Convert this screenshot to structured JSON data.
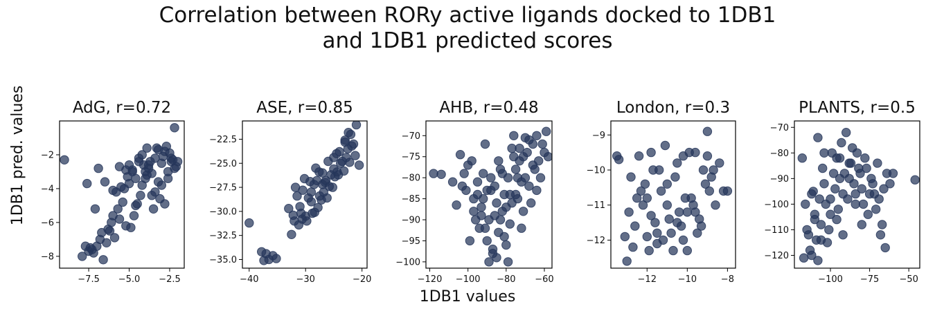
{
  "suptitle_lines": [
    "Correlation between RORy active ligands docked to 1DB1",
    "and 1DB1 predicted scores"
  ],
  "supxlabel": "1DB1 values",
  "supylabel": "1DB1 pred. values",
  "chart_data": [
    {
      "type": "scatter",
      "title": "AdG, r=0.72",
      "r": 0.72,
      "xlim": [
        -9.3,
        -1.6
      ],
      "ylim": [
        -8.7,
        0.0
      ],
      "xticks": [
        -7.5,
        -5.0,
        -2.5
      ],
      "xtick_labels": [
        "−7.5",
        "−5.0",
        "−2.5"
      ],
      "yticks": [
        -8,
        -6,
        -4,
        -2
      ],
      "ytick_labels": [
        "−8",
        "−6",
        "−4",
        "−2"
      ],
      "x": [
        -9.0,
        -7.6,
        -7.4,
        -7.9,
        -7.2,
        -7.0,
        -6.8,
        -6.6,
        -6.4,
        -6.2,
        -6.0,
        -5.8,
        -5.6,
        -5.4,
        -5.2,
        -5.0,
        -4.8,
        -4.6,
        -4.4,
        -4.2,
        -4.0,
        -3.8,
        -3.6,
        -3.4,
        -3.2,
        -3.0,
        -2.8,
        -2.6,
        -2.4,
        -2.2,
        -2.0,
        -3.3,
        -3.1,
        -3.7,
        -3.5,
        -2.9,
        -2.7,
        -4.1,
        -4.3,
        -3.9,
        -4.5,
        -4.7,
        -4.9,
        -5.1,
        -5.3,
        -5.5,
        -5.7,
        -6.1,
        -6.5,
        -6.9,
        -7.1,
        -7.5,
        -7.7,
        -6.7,
        -5.9,
        -4.0,
        -3.0,
        -2.5,
        -2.1,
        -2.3,
        -3.6,
        -4.4,
        -5.2,
        -6.3,
        -7.3,
        -6.0,
        -4.6,
        -3.4,
        -2.8,
        -3.8,
        -4.2,
        -5.0,
        -5.6,
        -4.8,
        -2.6,
        -3.2,
        -3.9,
        -2.4,
        -2.2
      ],
      "y": [
        -2.3,
        -3.7,
        -7.5,
        -8.0,
        -7.8,
        -7.4,
        -7.0,
        -8.2,
        -7.2,
        -6.5,
        -5.6,
        -4.2,
        -5.8,
        -4.8,
        -6.2,
        -2.6,
        -3.0,
        -3.4,
        -2.4,
        -3.8,
        -3.0,
        -2.8,
        -4.4,
        -2.2,
        -3.6,
        -2.5,
        -1.8,
        -3.0,
        -2.2,
        -2.8,
        -2.4,
        -1.6,
        -4.6,
        -2.4,
        -5.2,
        -2.1,
        -1.5,
        -2.6,
        -4.4,
        -3.2,
        -4.9,
        -5.6,
        -6.3,
        -3.3,
        -4.0,
        -3.9,
        -5.2,
        -6.0,
        -3.6,
        -2.8,
        -5.2,
        -7.7,
        -7.4,
        -6.6,
        -6.9,
        -3.4,
        -3.8,
        -1.9,
        -2.7,
        -2.3,
        -3.1,
        -2.2,
        -2.9,
        -6.4,
        -7.6,
        -4.1,
        -5.0,
        -4.2,
        -4.9,
        -2.6,
        -2.0,
        -3.7,
        -2.7,
        -2.9,
        -3.4,
        -1.7,
        -1.6,
        -2.4,
        -0.4
      ]
    },
    {
      "type": "scatter",
      "title": "ASE, r=0.85",
      "r": 0.85,
      "xlim": [
        -41.2,
        -19.1
      ],
      "ylim": [
        -35.9,
        -20.6
      ],
      "xticks": [
        -40,
        -30,
        -20
      ],
      "xtick_labels": [
        "−40",
        "−30",
        "−20"
      ],
      "yticks": [
        -35.0,
        -32.5,
        -30.0,
        -27.5,
        -25.0,
        -22.5
      ],
      "ytick_labels": [
        "−35.0",
        "−32.5",
        "−30.0",
        "−27.5",
        "−25.0",
        "−22.5"
      ],
      "x": [
        -40.0,
        -37.8,
        -37.4,
        -37.0,
        -36.5,
        -35.8,
        -35.2,
        -33.0,
        -32.0,
        -31.5,
        -31.0,
        -30.5,
        -30.0,
        -29.5,
        -29.0,
        -28.5,
        -28.0,
        -27.5,
        -27.0,
        -26.5,
        -26.0,
        -25.5,
        -25.0,
        -24.5,
        -24.0,
        -23.5,
        -23.0,
        -22.5,
        -22.0,
        -21.5,
        -21.0,
        -20.5,
        -32.5,
        -31.2,
        -30.8,
        -29.8,
        -28.8,
        -27.8,
        -26.8,
        -25.8,
        -24.8,
        -23.8,
        -22.8,
        -21.8,
        -30.2,
        -29.2,
        -28.2,
        -27.2,
        -26.2,
        -25.2,
        -24.2,
        -23.2,
        -22.2,
        -21.2,
        -29.0,
        -27.0,
        -25.0,
        -23.0,
        -31.8,
        -28.4,
        -26.4,
        -24.4,
        -22.4,
        -30.6,
        -32.2,
        -27.6
      ],
      "y": [
        -31.2,
        -34.2,
        -35.1,
        -34.4,
        -35.0,
        -34.6,
        -34.9,
        -29.7,
        -31.0,
        -28.4,
        -29.5,
        -27.8,
        -30.5,
        -28.6,
        -29.0,
        -27.2,
        -26.8,
        -28.4,
        -26.0,
        -27.0,
        -24.8,
        -26.2,
        -25.6,
        -24.0,
        -23.8,
        -24.8,
        -22.8,
        -23.5,
        -22.0,
        -23.0,
        -21.0,
        -25.2,
        -32.4,
        -31.4,
        -30.2,
        -31.0,
        -30.2,
        -29.6,
        -28.0,
        -27.4,
        -26.4,
        -25.0,
        -24.4,
        -23.2,
        -26.6,
        -26.9,
        -25.5,
        -28.8,
        -28.6,
        -27.5,
        -26.2,
        -25.8,
        -24.9,
        -24.2,
        -28.0,
        -27.2,
        -24.4,
        -22.6,
        -27.5,
        -30.1,
        -26.8,
        -25.9,
        -21.8,
        -30.8,
        -30.4,
        -25.9
      ]
    },
    {
      "type": "scatter",
      "title": "AHB, r=0.48",
      "r": 0.48,
      "xlim": [
        -122,
        -56
      ],
      "ylim": [
        -101.5,
        -66.5
      ],
      "xticks": [
        -120,
        -100,
        -80,
        -60
      ],
      "xtick_labels": [
        "−120",
        "−100",
        "−80",
        "−60"
      ],
      "yticks": [
        -100,
        -95,
        -90,
        -85,
        -80,
        -75,
        -70
      ],
      "ytick_labels": [
        "−100",
        "−95",
        "−90",
        "−85",
        "−80",
        "−75",
        "−70"
      ],
      "x": [
        -118,
        -114,
        -108,
        -106,
        -104,
        -103,
        -101,
        -100,
        -99,
        -98,
        -97,
        -96,
        -95,
        -94,
        -93,
        -92,
        -91,
        -90,
        -89,
        -88,
        -87,
        -86,
        -85,
        -84,
        -83,
        -82,
        -81,
        -80,
        -79,
        -78,
        -77,
        -76,
        -75,
        -74,
        -73,
        -72,
        -71,
        -70,
        -69,
        -68,
        -67,
        -66,
        -65,
        -64,
        -63,
        -62,
        -61,
        -60,
        -59,
        -58,
        -88,
        -85,
        -82,
        -80,
        -78,
        -76,
        -86,
        -84,
        -90,
        -92,
        -74,
        -72,
        -70,
        -79,
        -81,
        -83,
        -87,
        -77,
        -75,
        -89,
        -93,
        -68,
        -66,
        -64,
        -95,
        -102,
        -97,
        -91,
        -73,
        -71
      ],
      "y": [
        -79,
        -79.2,
        -81,
        -86.5,
        -74.5,
        -82,
        -83,
        -77,
        -95,
        -76,
        -88,
        -90,
        -84,
        -92,
        -87,
        -85,
        -72,
        -95,
        -90,
        -80,
        -98,
        -82,
        -86,
        -93,
        -78,
        -88,
        -84,
        -96,
        -80,
        -84,
        -86,
        -75,
        -78,
        -80,
        -76,
        -92,
        -88,
        -80,
        -74,
        -82,
        -86,
        -72,
        -78,
        -70,
        -76,
        -80,
        -72,
        -74,
        -69,
        -75,
        -83,
        -99,
        -79,
        -87,
        -91,
        -70,
        -89,
        -76,
        -83,
        -79,
        -85,
        -81,
        -70.5,
        -100,
        -94,
        -90,
        -97,
        -73,
        -84,
        -100,
        -89,
        -71,
        -77,
        -83,
        -81,
        -79,
        -85,
        -92,
        -73,
        -75
      ]
    },
    {
      "type": "scatter",
      "title": "London, r=0.3",
      "r": 0.3,
      "xlim": [
        -13.8,
        -7.6
      ],
      "ylim": [
        -12.8,
        -8.6
      ],
      "xticks": [
        -12,
        -10,
        -8
      ],
      "xtick_labels": [
        "−12",
        "−10",
        "−8"
      ],
      "yticks": [
        -12,
        -11,
        -10,
        -9
      ],
      "ytick_labels": [
        "−12",
        "−11",
        "−10",
        "−9"
      ],
      "x": [
        -13.5,
        -13.4,
        -12.8,
        -12.6,
        -12.4,
        -12.2,
        -12.0,
        -11.8,
        -11.6,
        -11.4,
        -11.2,
        -11.0,
        -10.8,
        -10.6,
        -10.4,
        -10.2,
        -10.0,
        -9.8,
        -9.6,
        -9.4,
        -9.2,
        -9.0,
        -8.8,
        -8.6,
        -8.4,
        -8.2,
        -8.0,
        -13.0,
        -12.9,
        -12.7,
        -12.3,
        -11.9,
        -11.5,
        -11.1,
        -10.7,
        -10.3,
        -9.9,
        -9.5,
        -9.1,
        -8.7,
        -12.1,
        -11.7,
        -11.3,
        -10.9,
        -10.5,
        -10.1,
        -9.7,
        -9.3,
        -12.5,
        -11.0,
        -10.0,
        -9.0,
        -11.5,
        -10.5,
        -12.0,
        -11.8,
        -10.2,
        -9.6,
        -8.9,
        -13.1
      ],
      "y": [
        -9.6,
        -9.7,
        -10.2,
        -11.6,
        -9.6,
        -11.0,
        -10.8,
        -9.5,
        -11.5,
        -10.0,
        -12.0,
        -10.4,
        -11.8,
        -10.2,
        -11.2,
        -9.6,
        -12.3,
        -10.8,
        -9.5,
        -11.4,
        -10.0,
        -9.6,
        -10.2,
        -11.0,
        -9.8,
        -10.6,
        -10.6,
        -12.6,
        -11.2,
        -12.2,
        -10.6,
        -12.3,
        -11.8,
        -9.3,
        -12.3,
        -11.6,
        -9.5,
        -11.8,
        -10.4,
        -10.0,
        -10.4,
        -10.0,
        -10.6,
        -11.4,
        -9.8,
        -10.8,
        -11.0,
        -11.6,
        -10.8,
        -11.0,
        -11.2,
        -8.9,
        -12.1,
        -11.5,
        -11.9,
        -11.3,
        -12.0,
        -11.2,
        -10.6,
        -11.9
      ]
    },
    {
      "type": "scatter",
      "title": "PLANTS, r=0.5",
      "r": 0.5,
      "xlim": [
        -123,
        -43
      ],
      "ylim": [
        -125,
        -67.5
      ],
      "xticks": [
        -100,
        -75,
        -50
      ],
      "xtick_labels": [
        "−100",
        "−75",
        "−50"
      ],
      "yticks": [
        -120,
        -110,
        -100,
        -90,
        -80,
        -70
      ],
      "ytick_labels": [
        "−120",
        "−110",
        "−100",
        "−90",
        "−80",
        "−70"
      ],
      "x": [
        -118,
        -116,
        -114,
        -112,
        -110,
        -108,
        -106,
        -104,
        -102,
        -100,
        -98,
        -96,
        -94,
        -92,
        -90,
        -88,
        -86,
        -84,
        -82,
        -80,
        -78,
        -76,
        -74,
        -72,
        -70,
        -68,
        -66,
        -64,
        -62,
        -60,
        -46,
        -117,
        -115,
        -113,
        -111,
        -109,
        -107,
        -105,
        -103,
        -101,
        -99,
        -97,
        -95,
        -93,
        -91,
        -89,
        -87,
        -85,
        -83,
        -81,
        -79,
        -77,
        -75,
        -73,
        -71,
        -69,
        -67,
        -65,
        -110,
        -106,
        -100,
        -94,
        -88,
        -84,
        -80,
        -96,
        -92,
        -104,
        -108,
        -112
      ],
      "y": [
        -82,
        -100,
        -112,
        -120,
        -104,
        -122,
        -108,
        -92,
        -115,
        -98,
        -88,
        -106,
        -82,
        -96,
        -72,
        -90,
        -78,
        -100,
        -86,
        -94,
        -82,
        -104,
        -90,
        -96,
        -84,
        -112,
        -94,
        -88,
        -92,
        -88,
        -90.5,
        -121,
        -110,
        -118,
        -95,
        -114,
        -98,
        -86,
        -100,
        -110,
        -80,
        -94,
        -102,
        -76,
        -88,
        -98,
        -84,
        -92,
        -80,
        -88,
        -100,
        -86,
        -96,
        -92,
        -102,
        -98,
        -108,
        -117,
        -106,
        -114,
        -104,
        -90,
        -84,
        -96,
        -108,
        -82,
        -112,
        -80,
        -74,
        -96
      ]
    }
  ]
}
